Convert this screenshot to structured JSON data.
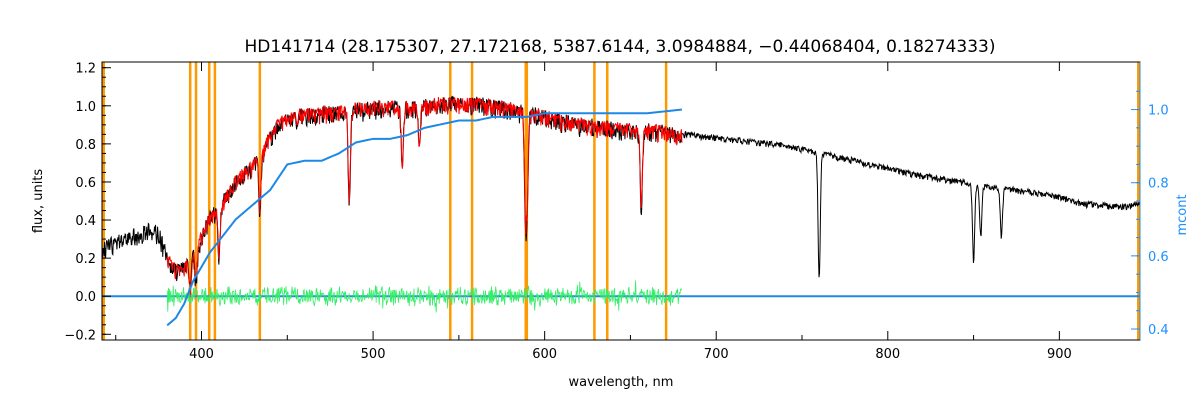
{
  "chart_data": {
    "type": "line",
    "title": "HD141714    (28.175307, 27.172168, 5387.6144, 3.0984884, −0.44068404, 0.18274333)",
    "xlabel": "wavelength, nm",
    "ylabel": "flux, units",
    "y2label": "mcont",
    "xlim": [
      342,
      947
    ],
    "ylim": [
      -0.23,
      1.23
    ],
    "y2lim": [
      0.37,
      1.13
    ],
    "x_ticks": [
      400,
      500,
      600,
      700,
      800,
      900
    ],
    "y_ticks": [
      -0.2,
      0.0,
      0.2,
      0.4,
      0.6,
      0.8,
      1.0,
      1.2
    ],
    "y2_ticks": [
      0.4,
      0.6,
      0.8,
      1.0
    ],
    "y_tick_labels": [
      "−0.2",
      "0.0",
      "0.2",
      "0.4",
      "0.6",
      "0.8",
      "1.0",
      "1.2"
    ],
    "y2_tick_labels": [
      "0.4",
      "0.6",
      "0.8",
      "1.0"
    ],
    "grid": false,
    "colors": {
      "observed": "#000000",
      "model": "#ff0000",
      "residual": "#33ee66",
      "continuum": "#1e88e5",
      "lines": "#ff9900",
      "right_axis": "#1e90ff"
    },
    "marked_lines_nm": [
      343,
      393.4,
      396.8,
      404.5,
      407.8,
      434.0,
      545.0,
      557.7,
      589.0,
      589.6,
      629.0,
      636.5,
      670.8,
      946
    ],
    "series": [
      {
        "key": "observed",
        "axis": "left",
        "x": [
          342,
          350,
          360,
          370,
          375,
          380,
          385,
          390,
          395,
          400,
          405,
          410,
          415,
          420,
          425,
          430,
          435,
          440,
          445,
          450,
          460,
          470,
          480,
          490,
          500,
          510,
          520,
          530,
          540,
          550,
          560,
          570,
          580,
          590,
          600,
          610,
          620,
          630,
          640,
          650,
          660,
          670,
          680,
          700,
          720,
          740,
          760,
          780,
          800,
          820,
          840,
          860,
          880,
          900,
          910,
          920,
          930,
          940,
          947
        ],
        "y": [
          0.27,
          0.3,
          0.34,
          0.37,
          0.35,
          0.22,
          0.15,
          0.17,
          0.24,
          0.33,
          0.43,
          0.47,
          0.55,
          0.62,
          0.66,
          0.7,
          0.76,
          0.86,
          0.92,
          0.95,
          0.97,
          0.98,
          0.99,
          1.0,
          1.01,
          1.01,
          1.01,
          1.02,
          1.03,
          1.03,
          1.03,
          1.02,
          1.0,
          0.98,
          0.96,
          0.94,
          0.92,
          0.91,
          0.9,
          0.89,
          0.89,
          0.88,
          0.86,
          0.84,
          0.82,
          0.8,
          0.76,
          0.72,
          0.68,
          0.64,
          0.61,
          0.58,
          0.56,
          0.53,
          0.5,
          0.49,
          0.48,
          0.48,
          0.5
        ]
      },
      {
        "key": "model",
        "axis": "left",
        "x": [
          380,
          385,
          390,
          395,
          400,
          405,
          410,
          415,
          420,
          425,
          430,
          435,
          440,
          445,
          450,
          460,
          470,
          480,
          490,
          500,
          510,
          520,
          530,
          540,
          550,
          560,
          570,
          580,
          590,
          600,
          610,
          620,
          630,
          640,
          650,
          660,
          670,
          680
        ],
        "y": [
          0.22,
          0.15,
          0.17,
          0.24,
          0.33,
          0.43,
          0.47,
          0.55,
          0.62,
          0.66,
          0.7,
          0.76,
          0.86,
          0.92,
          0.95,
          0.97,
          0.98,
          0.99,
          1.0,
          1.01,
          1.01,
          1.01,
          1.02,
          1.03,
          1.03,
          1.03,
          1.02,
          1.0,
          0.98,
          0.96,
          0.94,
          0.92,
          0.91,
          0.9,
          0.89,
          0.89,
          0.88,
          0.86
        ]
      },
      {
        "key": "continuum",
        "axis": "right",
        "x": [
          380,
          385,
          390,
          395,
          400,
          405,
          410,
          415,
          420,
          430,
          440,
          450,
          460,
          470,
          480,
          490,
          500,
          510,
          520,
          530,
          540,
          550,
          560,
          570,
          580,
          590,
          600,
          620,
          640,
          660,
          680
        ],
        "y": [
          0.41,
          0.43,
          0.47,
          0.53,
          0.57,
          0.61,
          0.64,
          0.67,
          0.7,
          0.74,
          0.78,
          0.85,
          0.86,
          0.86,
          0.88,
          0.91,
          0.92,
          0.92,
          0.93,
          0.95,
          0.96,
          0.97,
          0.97,
          0.98,
          0.98,
          0.98,
          0.99,
          0.99,
          0.99,
          0.99,
          1.0
        ]
      },
      {
        "key": "continuum_flat",
        "axis": "left",
        "x": [
          342,
          380,
          680,
          947
        ],
        "y": [
          0.0,
          0.0,
          0.0,
          0.0
        ]
      }
    ],
    "residual_range_nm": [
      380,
      680
    ],
    "absorption_lines": [
      {
        "x": 393.4,
        "depth": 0.18
      },
      {
        "x": 396.8,
        "depth": 0.18
      },
      {
        "x": 410.2,
        "depth": 0.25
      },
      {
        "x": 434.0,
        "depth": 0.28
      },
      {
        "x": 486.1,
        "depth": 0.48
      },
      {
        "x": 517.0,
        "depth": 0.3
      },
      {
        "x": 527.0,
        "depth": 0.2
      },
      {
        "x": 589.0,
        "depth": 0.66
      },
      {
        "x": 589.6,
        "depth": 0.6
      },
      {
        "x": 656.3,
        "depth": 0.42
      },
      {
        "x": 760.0,
        "depth": 0.66
      },
      {
        "x": 850.0,
        "depth": 0.4
      },
      {
        "x": 854.2,
        "depth": 0.26
      },
      {
        "x": 866.2,
        "depth": 0.26
      }
    ]
  }
}
